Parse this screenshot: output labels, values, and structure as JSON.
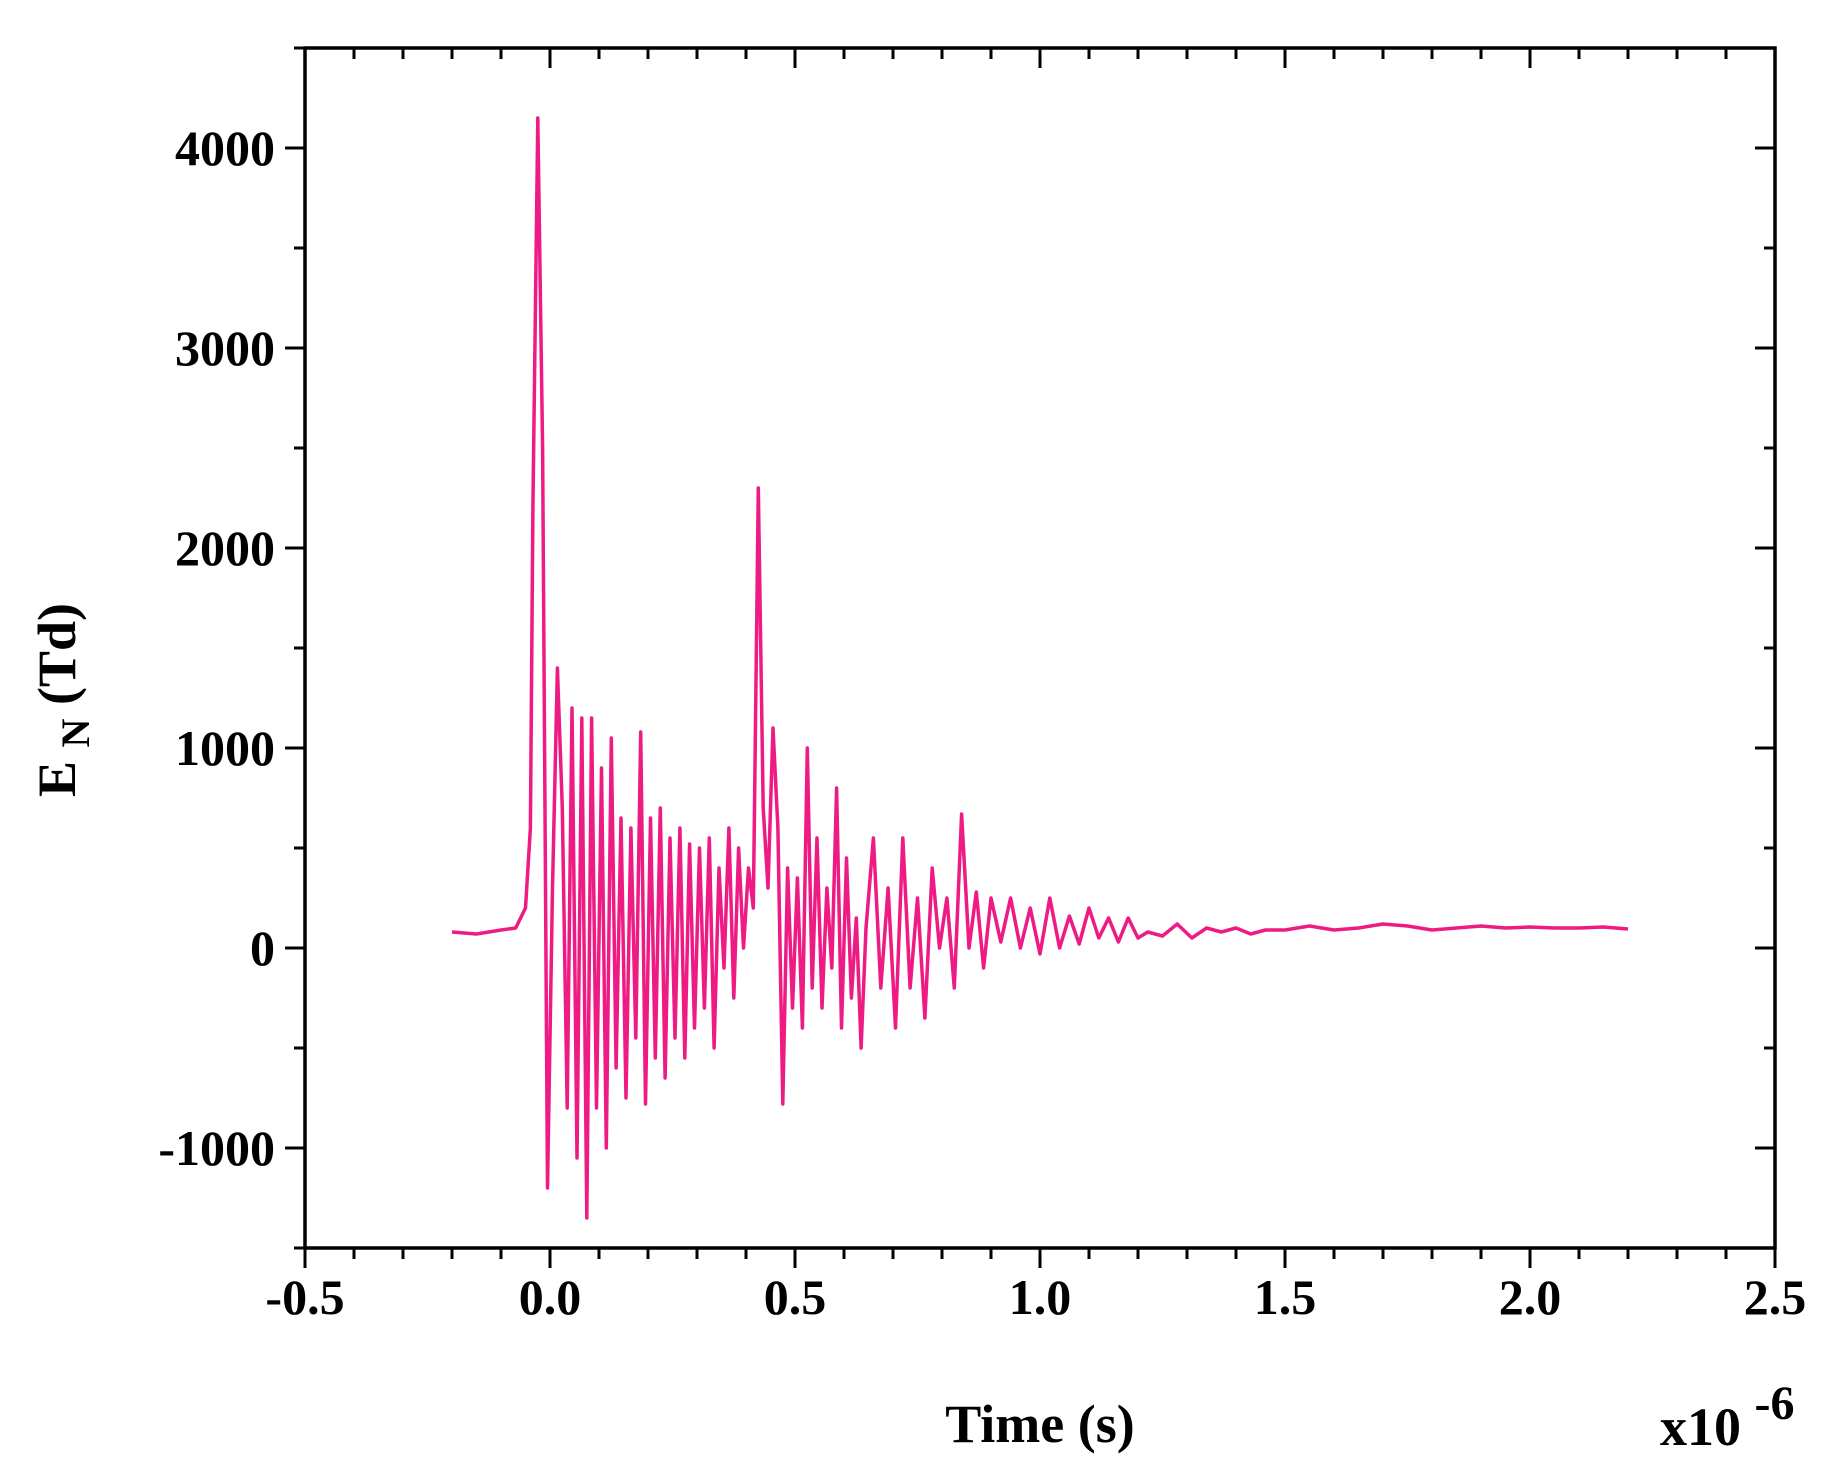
{
  "chart_data": {
    "type": "line",
    "title": "",
    "xlabel": "Time (s)",
    "x_multiplier": "x10",
    "x_multiplier_exp": "-6",
    "ylabel_main": "E",
    "ylabel_sub": "N",
    "ylabel_rest": "(Td)",
    "xlim": [
      -0.5,
      2.5
    ],
    "ylim": [
      -1500,
      4500
    ],
    "x_ticks": [
      "-0.5",
      "0.0",
      "0.5",
      "1.0",
      "1.5",
      "2.0",
      "2.5"
    ],
    "x_tick_values": [
      -0.5,
      0.0,
      0.5,
      1.0,
      1.5,
      2.0,
      2.5
    ],
    "y_ticks": [
      "-1000",
      "0",
      "1000",
      "2000",
      "3000",
      "4000"
    ],
    "y_tick_values": [
      -1000,
      0,
      1000,
      2000,
      3000,
      4000
    ],
    "grid": false,
    "legend": "none",
    "series": [
      {
        "color": "#ee1b84",
        "x": [
          -0.2,
          -0.15,
          -0.1,
          -0.07,
          -0.05,
          -0.04,
          -0.035,
          -0.025,
          -0.015,
          -0.005,
          0.005,
          0.015,
          0.025,
          0.035,
          0.045,
          0.055,
          0.065,
          0.075,
          0.085,
          0.095,
          0.105,
          0.115,
          0.125,
          0.135,
          0.145,
          0.155,
          0.165,
          0.175,
          0.185,
          0.195,
          0.205,
          0.215,
          0.225,
          0.235,
          0.245,
          0.255,
          0.265,
          0.275,
          0.285,
          0.295,
          0.305,
          0.315,
          0.325,
          0.335,
          0.345,
          0.355,
          0.365,
          0.375,
          0.385,
          0.395,
          0.405,
          0.415,
          0.425,
          0.435,
          0.445,
          0.455,
          0.465,
          0.475,
          0.485,
          0.495,
          0.505,
          0.515,
          0.525,
          0.535,
          0.545,
          0.555,
          0.565,
          0.575,
          0.585,
          0.595,
          0.605,
          0.615,
          0.625,
          0.635,
          0.645,
          0.66,
          0.675,
          0.69,
          0.705,
          0.72,
          0.735,
          0.75,
          0.765,
          0.78,
          0.795,
          0.81,
          0.825,
          0.84,
          0.855,
          0.87,
          0.885,
          0.9,
          0.92,
          0.94,
          0.96,
          0.98,
          1.0,
          1.02,
          1.04,
          1.06,
          1.08,
          1.1,
          1.12,
          1.14,
          1.16,
          1.18,
          1.2,
          1.22,
          1.25,
          1.28,
          1.31,
          1.34,
          1.37,
          1.4,
          1.43,
          1.46,
          1.5,
          1.55,
          1.6,
          1.65,
          1.7,
          1.75,
          1.8,
          1.85,
          1.9,
          1.95,
          2.0,
          2.05,
          2.1,
          2.15,
          2.2
        ],
        "y": [
          80,
          70,
          90,
          100,
          200,
          600,
          2200,
          4150,
          2500,
          -1200,
          300,
          1400,
          700,
          -800,
          1200,
          -1050,
          1150,
          -1350,
          1150,
          -800,
          900,
          -1000,
          1050,
          -600,
          650,
          -750,
          600,
          -450,
          1080,
          -780,
          650,
          -550,
          700,
          -650,
          550,
          -450,
          600,
          -550,
          520,
          -400,
          500,
          -300,
          550,
          -500,
          400,
          -100,
          600,
          -250,
          500,
          0,
          400,
          200,
          2300,
          700,
          300,
          1100,
          600,
          -780,
          400,
          -300,
          350,
          -400,
          1000,
          -200,
          550,
          -300,
          300,
          -100,
          800,
          -400,
          450,
          -250,
          150,
          -500,
          100,
          550,
          -200,
          300,
          -400,
          550,
          -200,
          250,
          -350,
          400,
          0,
          250,
          -200,
          670,
          0,
          280,
          -100,
          250,
          30,
          250,
          0,
          200,
          -30,
          250,
          0,
          160,
          20,
          200,
          50,
          150,
          30,
          150,
          50,
          80,
          60,
          120,
          50,
          100,
          80,
          100,
          70,
          90,
          90,
          110,
          90,
          100,
          120,
          110,
          90,
          100,
          110,
          100,
          105,
          100,
          100,
          105,
          95
        ]
      }
    ]
  }
}
